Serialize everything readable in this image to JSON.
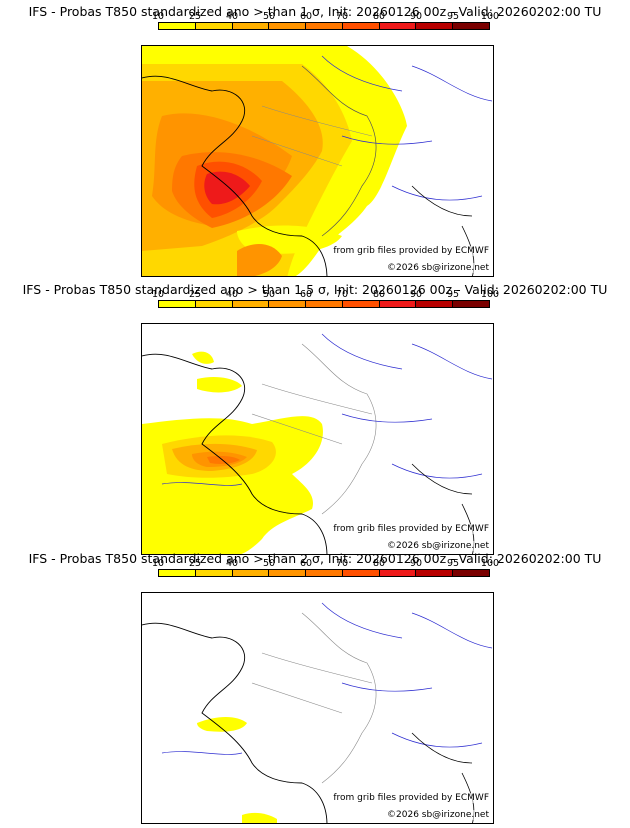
{
  "colorscale": {
    "ticks": [
      "10",
      "25",
      "40",
      "50",
      "60",
      "70",
      "80",
      "90",
      "95",
      "100"
    ],
    "colors": [
      "#ffff00",
      "#ffd800",
      "#ffb000",
      "#ff9400",
      "#ff7800",
      "#ff5000",
      "#ee1a1a",
      "#b80000",
      "#7a0000"
    ]
  },
  "panels": [
    {
      "title": "IFS - Probas T850  standardized ano > than 1 σ, Init: 20260126 00z - Valid: 20260202:00 TU",
      "threshold_sigma": 1,
      "credit_source": "from grib files provided by ECMWF",
      "credit_copyright": "©2026 sb@irizone.net"
    },
    {
      "title": "IFS - Probas T850  standardized ano > than 1.5 σ, Init: 20260126 00z - Valid: 20260202:00 TU",
      "threshold_sigma": 1.5,
      "credit_source": "from grib files provided by ECMWF",
      "credit_copyright": "©2026 sb@irizone.net"
    },
    {
      "title": "IFS - Probas T850  standardized ano > than 2 σ, Init: 20260126 00z - Valid: 20260202:00 TU",
      "threshold_sigma": 2,
      "credit_source": "from grib files provided by ECMWF",
      "credit_copyright": "©2026 sb@irizone.net"
    }
  ]
}
